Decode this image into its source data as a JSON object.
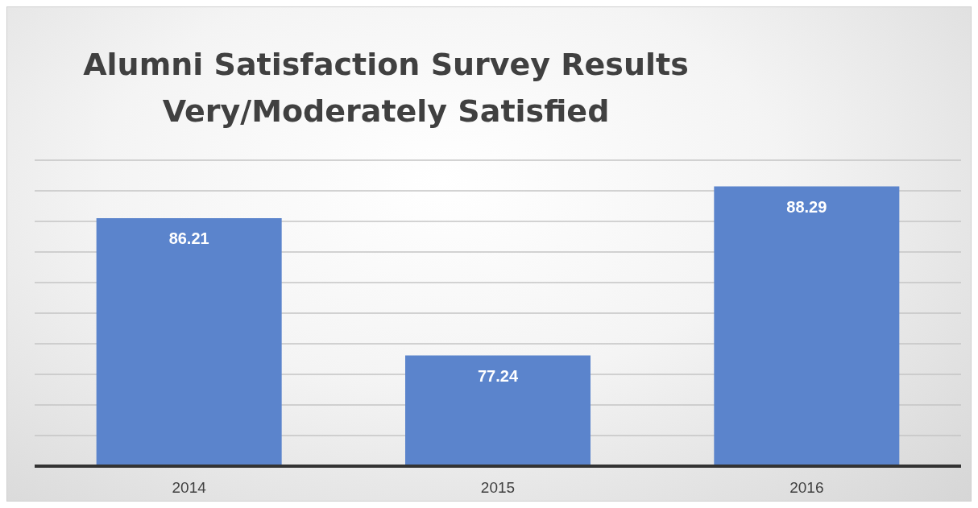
{
  "chart_data": {
    "type": "bar",
    "title": "Alumni Satisfaction Survey Results\nVery/Moderately Satisfied",
    "categories": [
      "2014",
      "2015",
      "2016"
    ],
    "values": [
      86.21,
      77.24,
      88.29
    ],
    "color": "#5b84cc",
    "ylim": [
      70,
      90
    ],
    "grid": "y",
    "tick_labels": "x",
    "data_labels": true
  }
}
